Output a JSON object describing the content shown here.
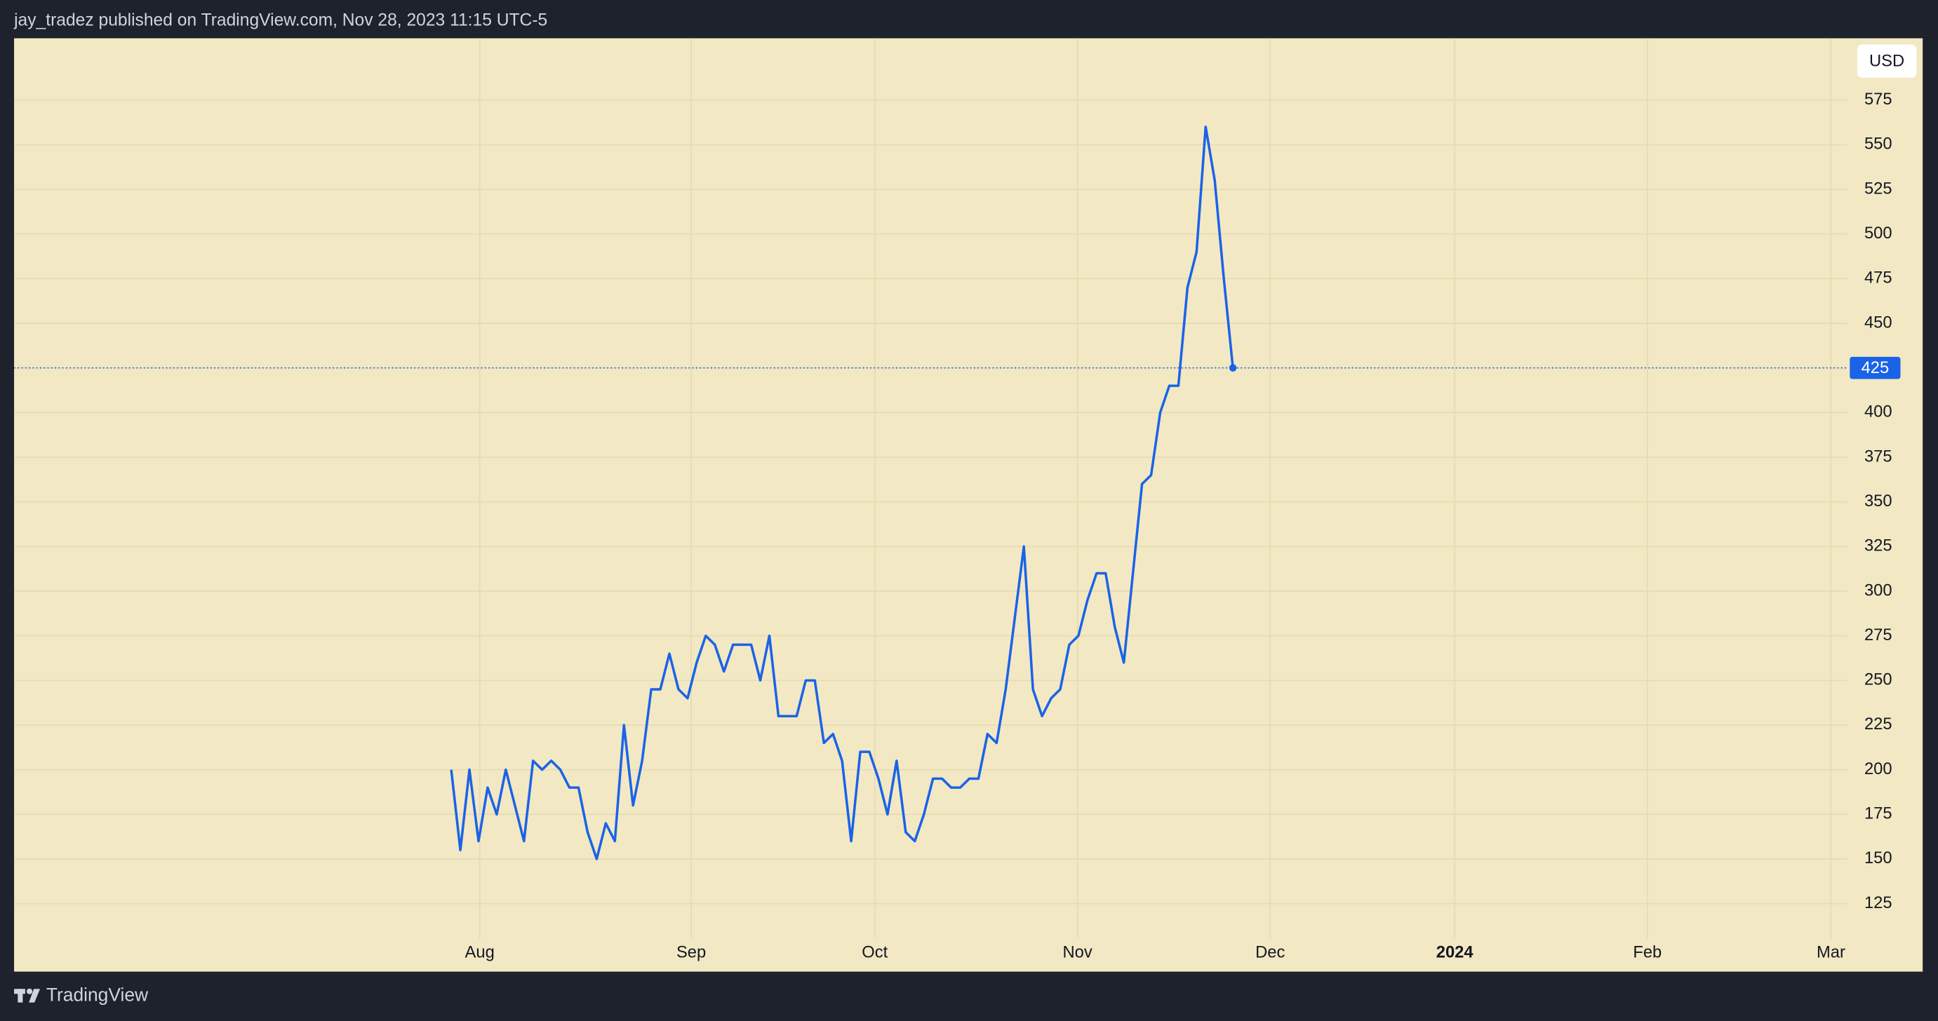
{
  "header": {
    "text": "jay_tradez published on TradingView.com, Nov 28, 2023 11:15 UTC-5"
  },
  "footer": {
    "brand": "TradingView"
  },
  "chart_data": {
    "type": "line",
    "currency": "USD",
    "background": "#f2e8c3",
    "grid": true,
    "ylim": [
      105.6,
      609.6
    ],
    "yticks": [
      125,
      150,
      175,
      200,
      225,
      250,
      275,
      300,
      325,
      350,
      375,
      400,
      425,
      450,
      475,
      500,
      525,
      550,
      575
    ],
    "xlim": [
      -48.1,
      153.6
    ],
    "xticks": [
      {
        "value": 3.13,
        "label": "Aug"
      },
      {
        "value": 26.4,
        "label": "Sep"
      },
      {
        "value": 46.6,
        "label": "Oct"
      },
      {
        "value": 68.9,
        "label": "Nov"
      },
      {
        "value": 90.1,
        "label": "Dec"
      },
      {
        "value": 110.4,
        "label": "2024"
      },
      {
        "value": 131.6,
        "label": "Feb"
      },
      {
        "value": 151.8,
        "label": "Mar"
      }
    ],
    "series": [
      {
        "color": "#1a63e8",
        "values": [
          200,
          155,
          200,
          160,
          190,
          175,
          200,
          180,
          160,
          205,
          200,
          205,
          200,
          190,
          190,
          165,
          150,
          170,
          160,
          225,
          180,
          205,
          245,
          245,
          265,
          245,
          240,
          260,
          275,
          270,
          255,
          270,
          270,
          270,
          250,
          275,
          230,
          230,
          230,
          250,
          250,
          215,
          220,
          205,
          160,
          210,
          210,
          195,
          175,
          205,
          165,
          160,
          175,
          195,
          195,
          190,
          190,
          195,
          195,
          220,
          215,
          245,
          285,
          325,
          245,
          230,
          240,
          245,
          270,
          275,
          295,
          310,
          310,
          280,
          260,
          310,
          360,
          365,
          400,
          415,
          415,
          470,
          490,
          560,
          530,
          475,
          425
        ]
      }
    ]
  }
}
